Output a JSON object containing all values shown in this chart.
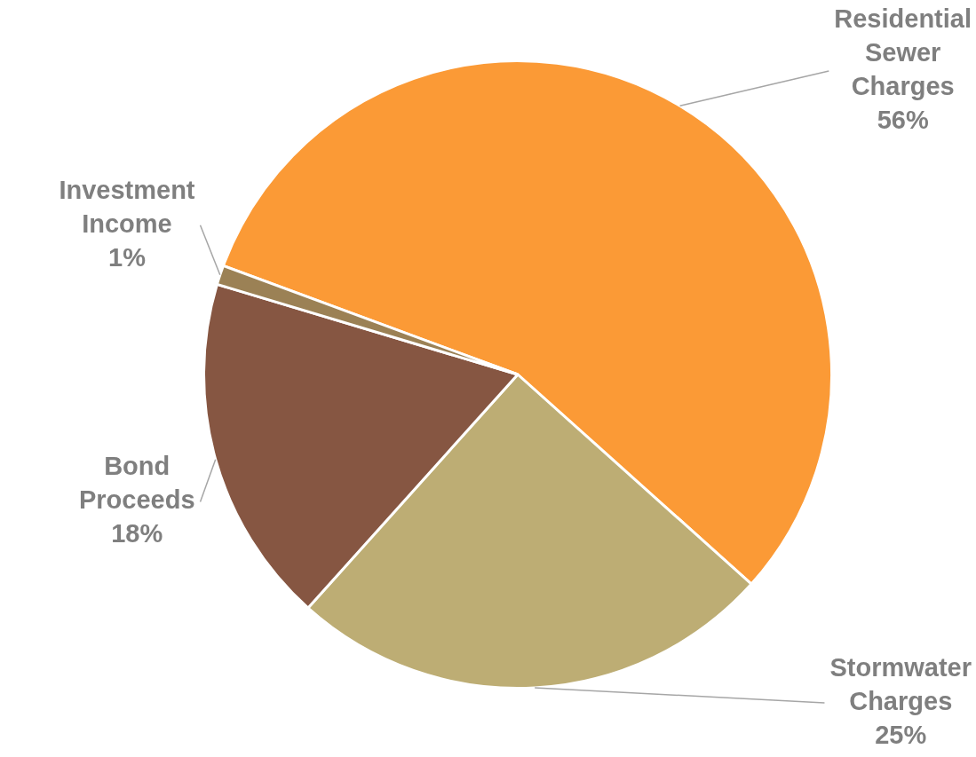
{
  "chart_data": {
    "type": "pie",
    "categories": [
      "Residential Sewer Charges",
      "Stormwater Charges",
      "Bond Proceeds",
      "Investment Income"
    ],
    "values": [
      56,
      25,
      18,
      1
    ],
    "colors": [
      "#fb9a36",
      "#bdad74",
      "#865642",
      "#9b8155"
    ],
    "value_labels": [
      "56%",
      "25%",
      "18%",
      "1%"
    ],
    "legend": false
  }
}
